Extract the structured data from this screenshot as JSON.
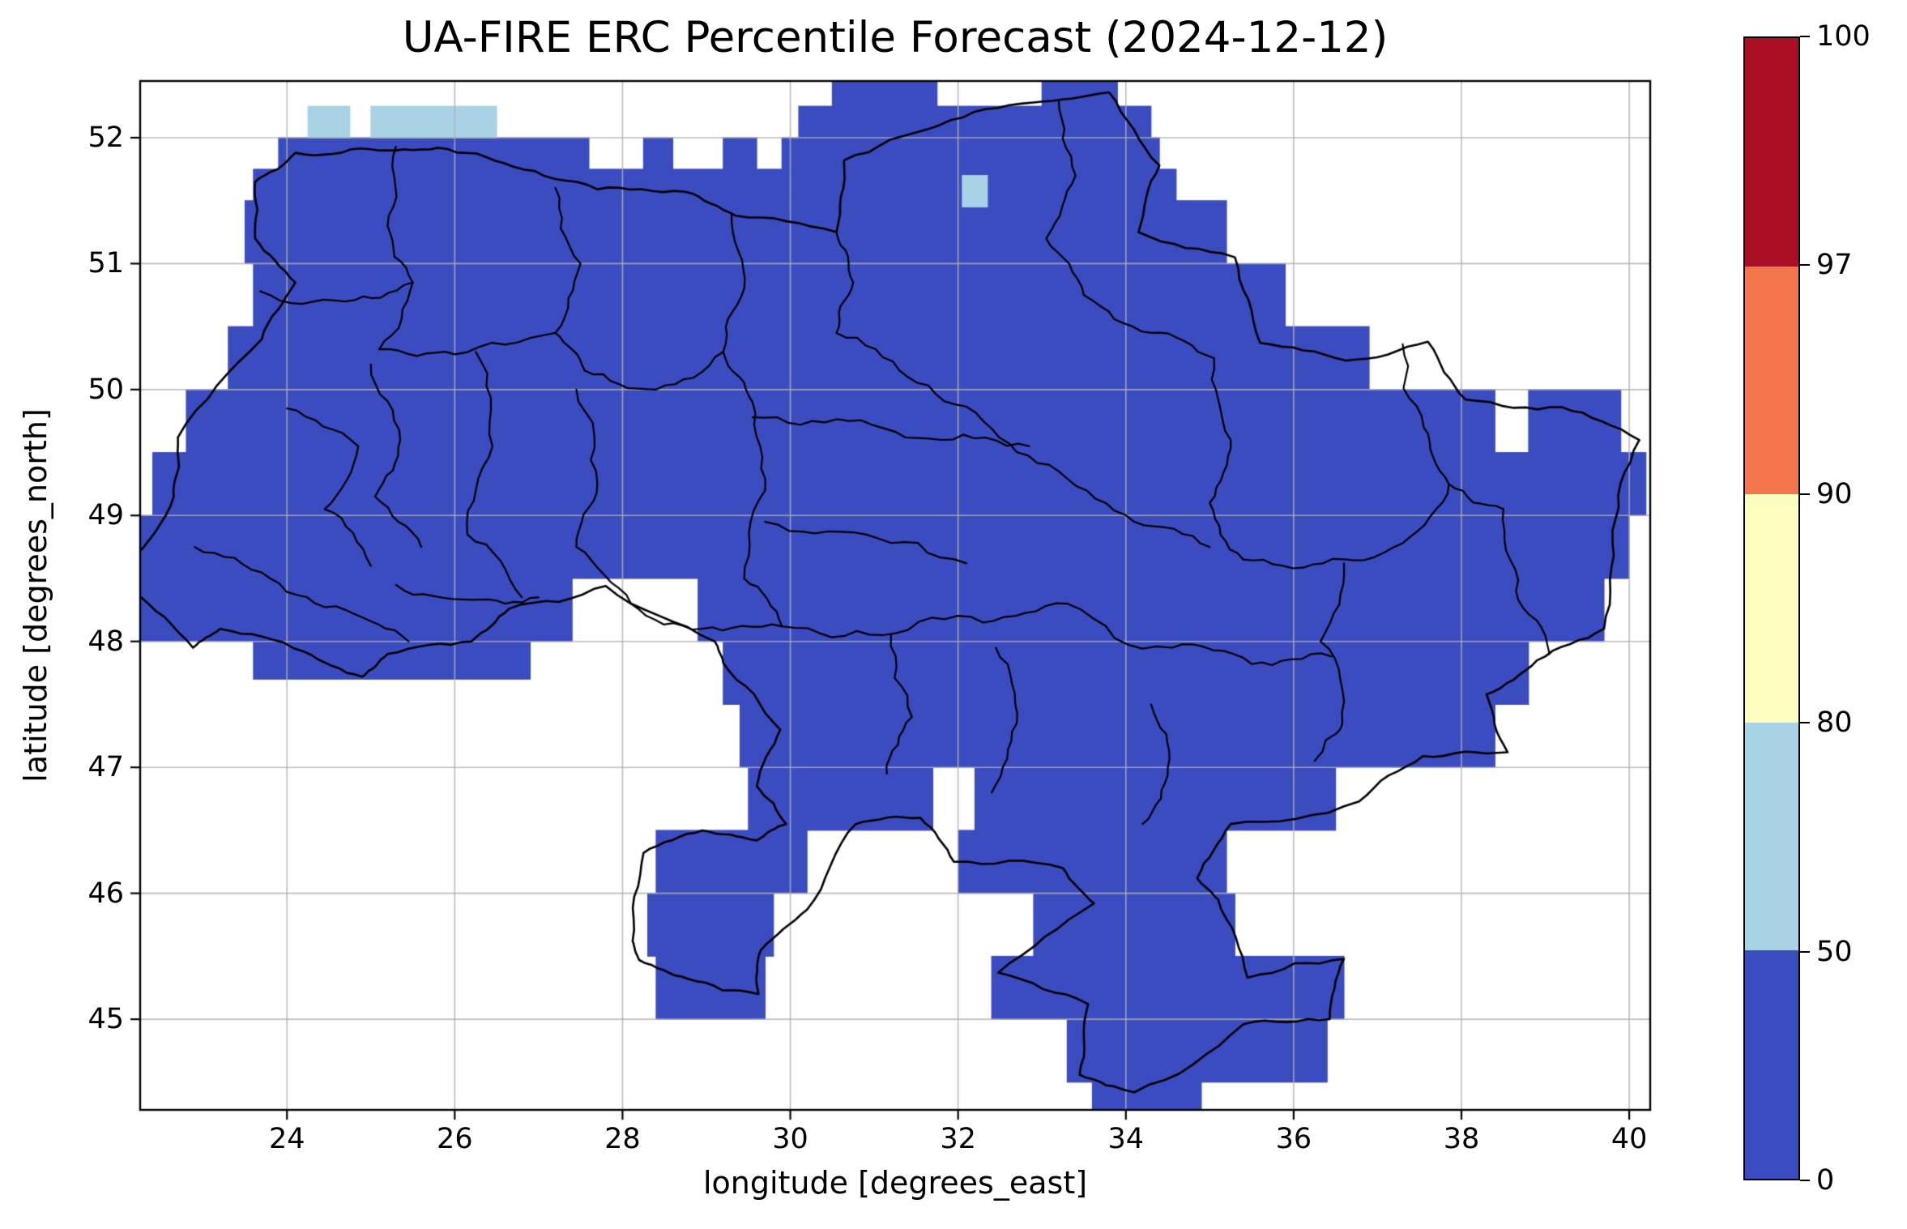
{
  "chart_data": {
    "type": "heatmap",
    "title": "UA-FIRE ERC Percentile Forecast (2024-12-12)",
    "xlabel": "longitude [degrees_east]",
    "ylabel": "latitude [degrees_north]",
    "xlim": [
      22.25,
      40.25
    ],
    "ylim": [
      44.28,
      52.45
    ],
    "xticks": [
      24,
      26,
      28,
      30,
      32,
      34,
      36,
      38,
      40
    ],
    "yticks": [
      45,
      46,
      47,
      48,
      49,
      50,
      51,
      52
    ],
    "grid": true,
    "grid_color": "#b0b0b0",
    "frame_color": "#000000",
    "boundary_line_color": "#000000",
    "colorbar": {
      "boundaries": [
        0,
        50,
        80,
        90,
        97,
        100
      ],
      "tick_labels": [
        "0",
        "50",
        "80",
        "90",
        "97",
        "100"
      ],
      "spacing": "uniform",
      "colors": [
        "#3b4cc0",
        "#a9d2e6",
        "#feffbe",
        "#f4764d",
        "#ab0f26"
      ]
    },
    "cells": {
      "bin_0_50": {
        "bin": "0-50",
        "color_index": 0,
        "rows": [
          {
            "lat": [
              52.25,
              52.45
            ],
            "spans": [
              [
                30.5,
                31.75
              ],
              [
                33.0,
                33.9
              ]
            ]
          },
          {
            "lat": [
              52.0,
              52.25
            ],
            "spans": [
              [
                30.1,
                34.3
              ]
            ]
          },
          {
            "lat": [
              51.75,
              52.0
            ],
            "spans": [
              [
                23.9,
                27.6
              ],
              [
                28.25,
                28.6
              ],
              [
                29.2,
                29.6
              ],
              [
                29.9,
                34.4
              ]
            ]
          },
          {
            "lat": [
              51.5,
              51.75
            ],
            "spans": [
              [
                23.6,
                34.6
              ]
            ]
          },
          {
            "lat": [
              51.0,
              51.5
            ],
            "spans": [
              [
                23.5,
                35.2
              ]
            ]
          },
          {
            "lat": [
              50.5,
              51.0
            ],
            "spans": [
              [
                23.6,
                35.9
              ]
            ]
          },
          {
            "lat": [
              50.0,
              50.5
            ],
            "spans": [
              [
                23.3,
                36.9
              ]
            ]
          },
          {
            "lat": [
              49.5,
              50.0
            ],
            "spans": [
              [
                22.8,
                38.4
              ],
              [
                38.8,
                39.9
              ]
            ]
          },
          {
            "lat": [
              49.0,
              49.5
            ],
            "spans": [
              [
                22.4,
                40.2
              ]
            ]
          },
          {
            "lat": [
              48.5,
              49.0
            ],
            "spans": [
              [
                22.15,
                40.0
              ]
            ]
          },
          {
            "lat": [
              48.0,
              48.5
            ],
            "spans": [
              [
                22.1,
                27.4
              ],
              [
                28.9,
                39.7
              ]
            ]
          },
          {
            "lat": [
              47.7,
              48.0
            ],
            "spans": [
              [
                23.6,
                26.9
              ]
            ]
          },
          {
            "lat": [
              47.5,
              48.0
            ],
            "spans": [
              [
                29.2,
                38.8
              ]
            ]
          },
          {
            "lat": [
              47.0,
              47.5
            ],
            "spans": [
              [
                29.4,
                38.4
              ]
            ]
          },
          {
            "lat": [
              46.5,
              47.0
            ],
            "spans": [
              [
                29.5,
                31.7
              ],
              [
                32.2,
                36.5
              ]
            ]
          },
          {
            "lat": [
              46.0,
              46.5
            ],
            "spans": [
              [
                28.4,
                30.2
              ],
              [
                32.0,
                35.2
              ]
            ]
          },
          {
            "lat": [
              45.5,
              46.0
            ],
            "spans": [
              [
                28.3,
                29.8
              ],
              [
                32.9,
                35.3
              ]
            ]
          },
          {
            "lat": [
              45.0,
              45.5
            ],
            "spans": [
              [
                28.4,
                29.7
              ],
              [
                32.4,
                36.6
              ]
            ]
          },
          {
            "lat": [
              44.5,
              45.0
            ],
            "spans": [
              [
                33.3,
                36.4
              ]
            ]
          },
          {
            "lat": [
              44.28,
              44.5
            ],
            "spans": [
              [
                33.6,
                34.9
              ]
            ]
          }
        ]
      },
      "bin_50_80": {
        "bin": "50-80",
        "color_index": 1,
        "rows": [
          {
            "lat": [
              52.0,
              52.25
            ],
            "spans": [
              [
                24.25,
                24.75
              ],
              [
                25.0,
                26.5
              ]
            ]
          },
          {
            "lat": [
              51.45,
              51.7
            ],
            "spans": [
              [
                32.05,
                32.35
              ]
            ]
          }
        ]
      }
    },
    "boundaries": {
      "outline": [
        [
          23.62,
          51.65
        ],
        [
          24.1,
          51.88
        ],
        [
          24.98,
          51.91
        ],
        [
          25.8,
          51.92
        ],
        [
          26.7,
          51.77
        ],
        [
          27.7,
          51.59
        ],
        [
          28.75,
          51.57
        ],
        [
          29.35,
          51.38
        ],
        [
          30.55,
          51.25
        ],
        [
          30.64,
          51.82
        ],
        [
          31.78,
          52.1
        ],
        [
          32.9,
          52.28
        ],
        [
          33.8,
          52.36
        ],
        [
          34.4,
          51.78
        ],
        [
          34.15,
          51.25
        ],
        [
          35.3,
          51.05
        ],
        [
          35.6,
          50.37
        ],
        [
          36.62,
          50.23
        ],
        [
          37.6,
          50.38
        ],
        [
          38.05,
          49.92
        ],
        [
          39.2,
          49.86
        ],
        [
          40.12,
          49.6
        ],
        [
          39.8,
          48.88
        ],
        [
          39.7,
          48.1
        ],
        [
          38.9,
          47.85
        ],
        [
          38.3,
          47.58
        ],
        [
          38.55,
          47.12
        ],
        [
          37.54,
          47.09
        ],
        [
          36.78,
          46.73
        ],
        [
          35.25,
          46.55
        ],
        [
          34.85,
          46.12
        ],
        [
          35.1,
          45.95
        ],
        [
          35.45,
          45.33
        ],
        [
          36.6,
          45.48
        ],
        [
          36.43,
          45.0
        ],
        [
          35.4,
          44.96
        ],
        [
          34.1,
          44.42
        ],
        [
          33.45,
          44.56
        ],
        [
          33.55,
          45.12
        ],
        [
          32.48,
          45.37
        ],
        [
          33.62,
          45.92
        ],
        [
          33.25,
          46.2
        ],
        [
          31.95,
          46.25
        ],
        [
          31.55,
          46.6
        ],
        [
          30.78,
          46.55
        ],
        [
          30.2,
          45.87
        ],
        [
          29.65,
          45.55
        ],
        [
          29.62,
          45.2
        ],
        [
          28.78,
          45.32
        ],
        [
          28.2,
          45.47
        ],
        [
          28.12,
          45.62
        ],
        [
          28.25,
          46.32
        ],
        [
          28.95,
          46.5
        ],
        [
          29.6,
          46.42
        ],
        [
          29.95,
          46.55
        ],
        [
          29.6,
          46.85
        ],
        [
          29.88,
          47.3
        ],
        [
          29.2,
          47.83
        ],
        [
          29.1,
          48.0
        ],
        [
          27.8,
          48.44
        ],
        [
          26.65,
          48.26
        ],
        [
          26.2,
          48.0
        ],
        [
          25.2,
          47.9
        ],
        [
          24.9,
          47.72
        ],
        [
          24.2,
          47.92
        ],
        [
          23.2,
          48.1
        ],
        [
          22.88,
          47.95
        ],
        [
          22.15,
          48.4
        ],
        [
          22.14,
          48.62
        ],
        [
          22.65,
          49.15
        ],
        [
          22.7,
          49.62
        ],
        [
          23.7,
          50.4
        ],
        [
          24.1,
          50.85
        ],
        [
          23.62,
          51.2
        ]
      ],
      "internal_lines": [
        [
          [
            25.3,
            51.93
          ],
          [
            25.2,
            51.3
          ],
          [
            25.5,
            50.85
          ],
          [
            25.1,
            50.32
          ]
        ],
        [
          [
            27.2,
            51.6
          ],
          [
            27.5,
            51.0
          ],
          [
            27.2,
            50.45
          ],
          [
            27.55,
            50.15
          ]
        ],
        [
          [
            29.3,
            51.4
          ],
          [
            29.45,
            50.8
          ],
          [
            29.2,
            50.3
          ],
          [
            29.55,
            49.9
          ]
        ],
        [
          [
            30.55,
            51.25
          ],
          [
            30.75,
            50.85
          ],
          [
            30.55,
            50.45
          ]
        ],
        [
          [
            33.2,
            52.3
          ],
          [
            33.4,
            51.7
          ],
          [
            33.05,
            51.2
          ],
          [
            33.5,
            50.75
          ]
        ],
        [
          [
            23.68,
            50.78
          ],
          [
            24.7,
            50.7
          ],
          [
            25.5,
            50.85
          ]
        ],
        [
          [
            25.1,
            50.32
          ],
          [
            26.0,
            50.28
          ],
          [
            27.2,
            50.45
          ]
        ],
        [
          [
            27.55,
            50.15
          ],
          [
            28.4,
            50.0
          ],
          [
            29.2,
            50.3
          ]
        ],
        [
          [
            24.0,
            49.85
          ],
          [
            24.85,
            49.55
          ],
          [
            24.45,
            49.05
          ],
          [
            25.0,
            48.6
          ]
        ],
        [
          [
            25.0,
            50.2
          ],
          [
            25.35,
            49.6
          ],
          [
            25.05,
            49.15
          ],
          [
            25.6,
            48.75
          ]
        ],
        [
          [
            26.25,
            50.3
          ],
          [
            26.45,
            49.55
          ],
          [
            26.15,
            48.85
          ],
          [
            26.8,
            48.35
          ]
        ],
        [
          [
            27.45,
            50.0
          ],
          [
            27.7,
            49.25
          ],
          [
            27.45,
            48.75
          ],
          [
            28.1,
            48.3
          ]
        ],
        [
          [
            29.55,
            49.9
          ],
          [
            29.7,
            49.2
          ],
          [
            29.45,
            48.5
          ],
          [
            29.9,
            48.12
          ]
        ],
        [
          [
            29.55,
            49.78
          ],
          [
            30.7,
            49.75
          ],
          [
            31.8,
            49.6
          ],
          [
            32.85,
            49.55
          ]
        ],
        [
          [
            30.55,
            50.45
          ],
          [
            31.4,
            50.1
          ],
          [
            32.3,
            49.75
          ],
          [
            33.2,
            49.35
          ],
          [
            34.1,
            48.95
          ],
          [
            35.0,
            48.75
          ]
        ],
        [
          [
            33.5,
            50.75
          ],
          [
            34.3,
            50.45
          ],
          [
            35.05,
            50.25
          ]
        ],
        [
          [
            35.05,
            50.25
          ],
          [
            35.25,
            49.6
          ],
          [
            35.0,
            49.1
          ],
          [
            35.4,
            48.65
          ]
        ],
        [
          [
            37.3,
            50.36
          ],
          [
            37.55,
            49.7
          ],
          [
            37.85,
            49.25
          ],
          [
            38.5,
            49.05
          ]
        ],
        [
          [
            38.5,
            49.05
          ],
          [
            38.65,
            48.4
          ],
          [
            39.05,
            47.9
          ]
        ],
        [
          [
            35.4,
            48.65
          ],
          [
            36.35,
            48.62
          ],
          [
            37.3,
            48.78
          ],
          [
            37.85,
            49.25
          ]
        ],
        [
          [
            36.6,
            48.62
          ],
          [
            36.32,
            48.0
          ],
          [
            36.58,
            47.35
          ],
          [
            36.25,
            47.05
          ]
        ],
        [
          [
            34.55,
            47.95
          ],
          [
            35.5,
            47.82
          ],
          [
            36.45,
            47.88
          ]
        ],
        [
          [
            34.3,
            47.5
          ],
          [
            34.5,
            47.0
          ],
          [
            34.2,
            46.55
          ]
        ],
        [
          [
            32.45,
            47.95
          ],
          [
            32.7,
            47.35
          ],
          [
            32.4,
            46.8
          ]
        ],
        [
          [
            31.2,
            48.05
          ],
          [
            31.45,
            47.4
          ],
          [
            31.15,
            46.95
          ]
        ],
        [
          [
            29.9,
            48.12
          ],
          [
            31.1,
            48.05
          ],
          [
            32.3,
            48.15
          ],
          [
            33.3,
            48.3
          ],
          [
            34.55,
            47.95
          ]
        ],
        [
          [
            29.7,
            48.95
          ],
          [
            30.9,
            48.85
          ],
          [
            32.1,
            48.62
          ]
        ],
        [
          [
            22.9,
            48.75
          ],
          [
            23.8,
            48.5
          ],
          [
            24.7,
            48.25
          ],
          [
            25.45,
            48.0
          ]
        ],
        [
          [
            25.3,
            48.45
          ],
          [
            26.2,
            48.33
          ],
          [
            27.0,
            48.35
          ]
        ],
        [
          [
            28.1,
            48.3
          ],
          [
            28.95,
            48.1
          ],
          [
            29.9,
            48.12
          ]
        ]
      ]
    }
  }
}
